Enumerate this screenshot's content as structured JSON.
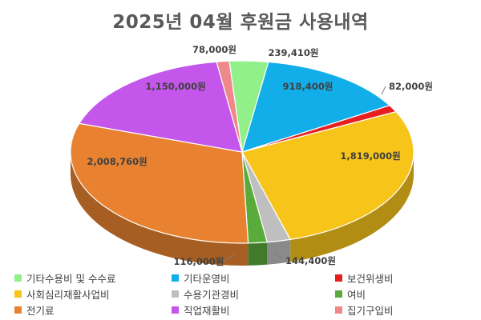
{
  "chart_data": {
    "type": "pie",
    "title": "2025년 04월 후원금 사용내역",
    "unit": "원",
    "legend_position": "bottom",
    "slices": [
      {
        "name": "기타수용비 및 수수료",
        "value": 239410,
        "label": "239,410원",
        "color": "#92f08a"
      },
      {
        "name": "기타운영비",
        "value": 918400,
        "label": "918,400원",
        "color": "#12aeea"
      },
      {
        "name": "보건위생비",
        "value": 82000,
        "label": "82,000원",
        "color": "#e61f1f"
      },
      {
        "name": "사회심리재활사업비",
        "value": 1819000,
        "label": "1,819,000원",
        "color": "#f7c41a"
      },
      {
        "name": "수용기관경비",
        "value": 144400,
        "label": "144,400원",
        "color": "#bfbfbf"
      },
      {
        "name": "여비",
        "value": 116000,
        "label": "116,000원",
        "color": "#5aaa3c"
      },
      {
        "name": "전기료",
        "value": 2008760,
        "label": "2,008,760원",
        "color": "#e88231"
      },
      {
        "name": "직업재활비",
        "value": 1150000,
        "label": "1,150,000원",
        "color": "#c456ec"
      },
      {
        "name": "집기구입비",
        "value": 78000,
        "label": "78,000원",
        "color": "#ef8888"
      }
    ]
  }
}
